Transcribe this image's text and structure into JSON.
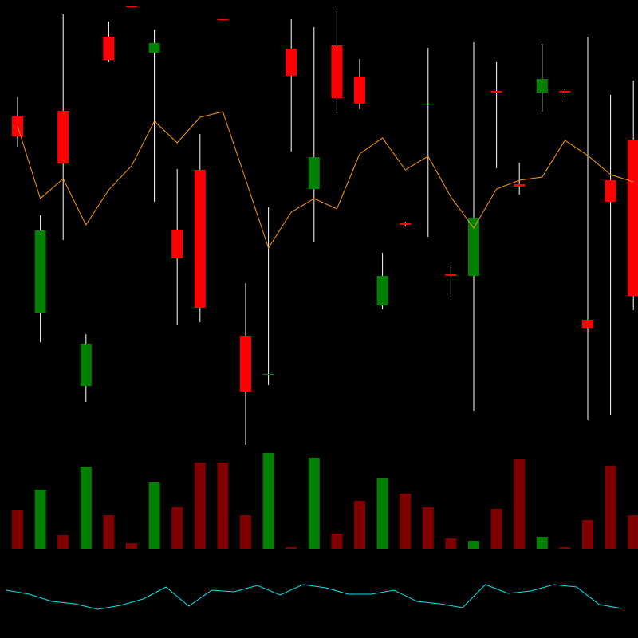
{
  "chart_data": [
    {
      "type": "candlestick",
      "open": [
        414,
        168,
        421,
        76,
        514,
        552,
        494,
        272,
        347,
        536,
        139,
        91,
        499,
        323,
        503,
        464,
        177,
        280,
        430,
        216,
        214,
        446,
        329,
        444,
        446,
        159,
        334,
        385
      ],
      "high": [
        438,
        290,
        542,
        141,
        533,
        552,
        523,
        348,
        392,
        536,
        205,
        300,
        536,
        526,
        546,
        486,
        243,
        282,
        500,
        228,
        507,
        482,
        356,
        505,
        448,
        514,
        441,
        459
      ],
      "low": [
        376,
        131,
        259,
        56,
        482,
        551,
        307,
        152,
        156,
        535,
        2,
        77,
        370,
        256,
        418,
        423,
        172,
        276,
        263,
        187,
        45,
        349,
        316,
        420,
        438,
        33,
        40,
        171
      ],
      "close": [
        389,
        271,
        355,
        129,
        485,
        551,
        506,
        236,
        174,
        535,
        69,
        91,
        465,
        363,
        437,
        430,
        214,
        278,
        430,
        214,
        287,
        444,
        326,
        461,
        444,
        149,
        307,
        189
      ],
      "up_color": "#008000",
      "down_color": "#ff0000",
      "wick_color": "#ffffff",
      "overlay": {
        "color": "#ff9900",
        "values": [
          402,
          311,
          336,
          278,
          322,
          352,
          408,
          381,
          413,
          420,
          335,
          249,
          294,
          311,
          298,
          367,
          387,
          347,
          364,
          313,
          274,
          323,
          334,
          338,
          384,
          365,
          341,
          332
        ]
      },
      "ylim": [
        0,
        560
      ]
    },
    {
      "type": "bar",
      "values": [
        48,
        74,
        17,
        103,
        42,
        7,
        83,
        52,
        108,
        108,
        42,
        120,
        2,
        114,
        19,
        60,
        88,
        69,
        52,
        13,
        10,
        50,
        112,
        15,
        2,
        36,
        104,
        42
      ],
      "colors": [
        "#800000",
        "#008000",
        "#800000",
        "#008000",
        "#800000",
        "#800000",
        "#008000",
        "#800000",
        "#800000",
        "#800000",
        "#800000",
        "#008000",
        "#800000",
        "#008000",
        "#800000",
        "#800000",
        "#008000",
        "#800000",
        "#800000",
        "#800000",
        "#008000",
        "#800000",
        "#800000",
        "#008000",
        "#800000",
        "#800000",
        "#800000",
        "#800000"
      ],
      "ylim": [
        0,
        130
      ]
    },
    {
      "type": "line",
      "color": "#00e5ee",
      "values": [
        60,
        55,
        46,
        43,
        36,
        41,
        49,
        64,
        40,
        60,
        58,
        66,
        54,
        67,
        63,
        55,
        55,
        60,
        46,
        43,
        38,
        67,
        56,
        59,
        67,
        64,
        42,
        37
      ],
      "ylim": [
        0,
        100
      ]
    }
  ]
}
